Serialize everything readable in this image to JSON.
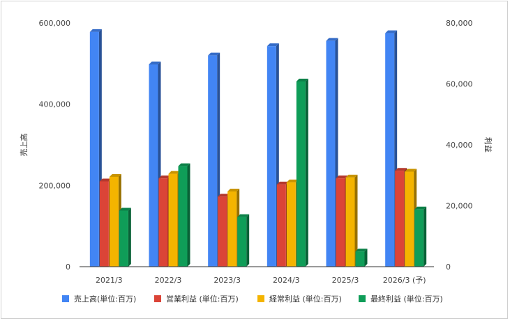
{
  "chart_data": {
    "type": "bar",
    "bar_style": "3d",
    "categories": [
      "2021/3",
      "2022/3",
      "2023/3",
      "2024/3",
      "2025/3",
      "2026/3 (予)"
    ],
    "y_left": {
      "label": "売上高",
      "ylim": [
        0,
        600000
      ],
      "ticks": [
        0,
        200000,
        400000,
        600000
      ],
      "tick_labels": [
        "0",
        "200,000",
        "400,000",
        "600,000"
      ]
    },
    "y_right": {
      "label": "利益",
      "ylim": [
        0,
        80000
      ],
      "ticks": [
        0,
        20000,
        40000,
        60000,
        80000
      ],
      "tick_labels": [
        "0",
        "20,000",
        "40,000",
        "60,000",
        "80,000"
      ]
    },
    "series": [
      {
        "name": "売上高(単位:百万)",
        "axis": "left",
        "color": "#4285f4",
        "values": [
          578000,
          498000,
          520000,
          543000,
          556000,
          575000
        ]
      },
      {
        "name": "営業利益 (単位:百万)",
        "axis": "right",
        "color": "#db4437",
        "values": [
          28000,
          29000,
          23000,
          27000,
          29000,
          31500
        ]
      },
      {
        "name": "経常利益 (単位:百万)",
        "axis": "right",
        "color": "#f4b400",
        "values": [
          29500,
          30500,
          24700,
          27700,
          29300,
          31200
        ]
      },
      {
        "name": "最終利益 (単位:百万)",
        "axis": "right",
        "color": "#0f9d58",
        "values": [
          18400,
          33000,
          16300,
          60800,
          5000,
          18800
        ]
      }
    ],
    "legend_position": "bottom",
    "grid": false
  }
}
